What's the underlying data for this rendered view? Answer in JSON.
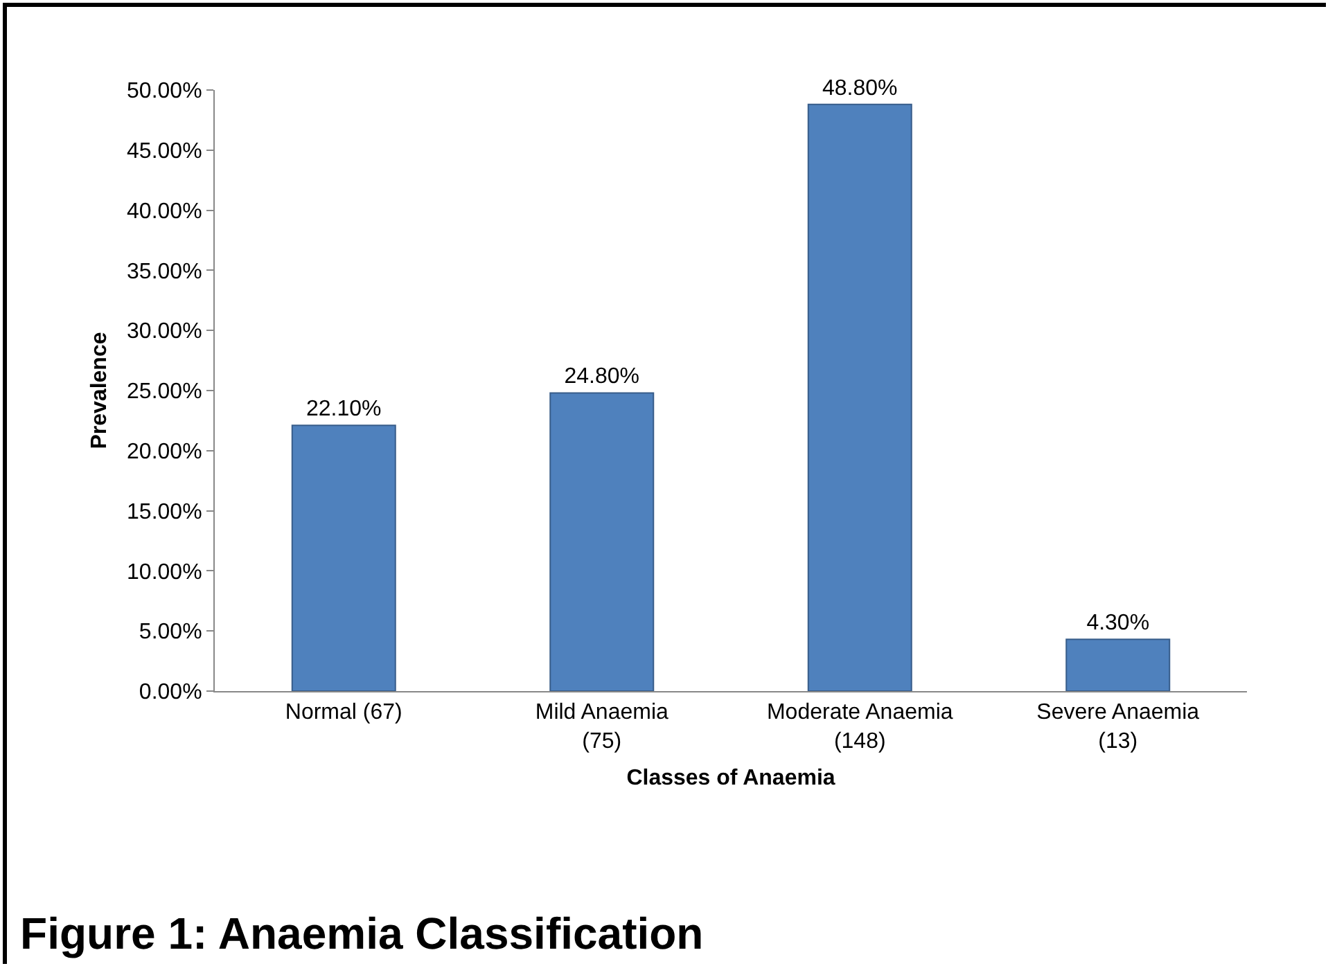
{
  "chart_data": {
    "type": "bar",
    "title": "Figure 1: Anaemia Classification",
    "xlabel": "Classes of Anaemia",
    "ylabel": "Prevalence",
    "categories": [
      "Normal (67)",
      "Mild Anaemia (75)",
      "Moderate Anaemia (148)",
      "Severe Anaemia (13)"
    ],
    "values": [
      22.1,
      24.8,
      48.8,
      4.3
    ],
    "value_labels": [
      "22.10%",
      "24.80%",
      "48.80%",
      "4.30%"
    ],
    "color": "#4f81bd",
    "ylim": [
      0,
      50
    ],
    "yticks": [
      {
        "value": 0,
        "label": "0.00%"
      },
      {
        "value": 5,
        "label": "5.00%"
      },
      {
        "value": 10,
        "label": "10.00%"
      },
      {
        "value": 15,
        "label": "15.00%"
      },
      {
        "value": 20,
        "label": "20.00%"
      },
      {
        "value": 25,
        "label": "25.00%"
      },
      {
        "value": 30,
        "label": "30.00%"
      },
      {
        "value": 35,
        "label": "35.00%"
      },
      {
        "value": 40,
        "label": "40.00%"
      },
      {
        "value": 45,
        "label": "45.00%"
      },
      {
        "value": 50,
        "label": "50.00%"
      }
    ]
  }
}
